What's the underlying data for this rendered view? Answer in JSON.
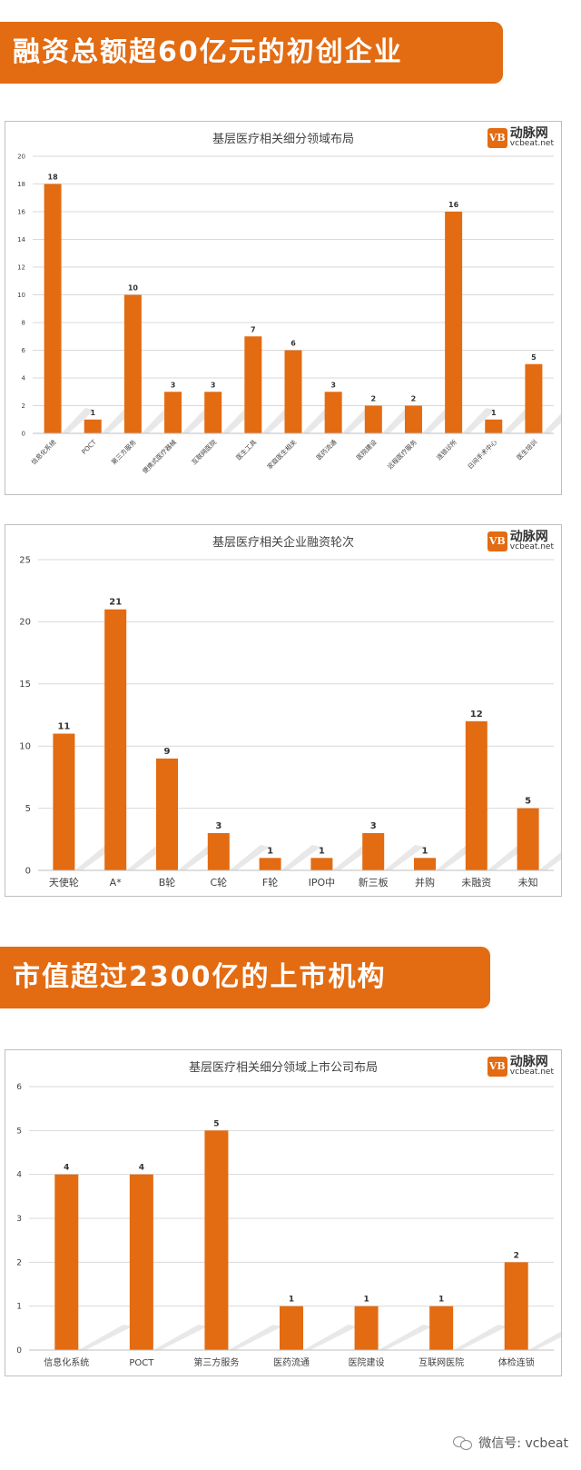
{
  "sections": [
    {
      "title": "融资总额超60亿元的初创企业"
    },
    {
      "title": "市值超过2300亿的上市机构"
    }
  ],
  "logo": {
    "mark": "VB",
    "cn": "动脉网",
    "en": "vcbeat.net"
  },
  "footer": {
    "text": "微信号: vcbeat",
    "icon": "wechat-icon"
  },
  "colors": {
    "accent": "#e36b12",
    "grid": "#d9d9d9",
    "text": "#404040"
  },
  "chart_data": [
    {
      "type": "bar",
      "title": "基层医疗相关细分领域布局",
      "categories": [
        "信息化系统",
        "POCT",
        "第三方服务",
        "便携式医疗器械",
        "互联网医院",
        "医生工具",
        "家庭医生相关",
        "医药流通",
        "医院建设",
        "远程医疗服务",
        "连锁诊所",
        "日间手术中心",
        "医生培训"
      ],
      "values": [
        18,
        1,
        10,
        3,
        3,
        7,
        6,
        3,
        2,
        2,
        16,
        1,
        5
      ],
      "yticks": [
        0,
        2,
        4,
        6,
        8,
        10,
        12,
        14,
        16,
        18,
        20
      ],
      "ylim": [
        0,
        20
      ],
      "xlabel_rotated": true,
      "grid": true
    },
    {
      "type": "bar",
      "title": "基层医疗相关企业融资轮次",
      "categories": [
        "天使轮",
        "A*",
        "B轮",
        "C轮",
        "F轮",
        "IPO中",
        "新三板",
        "并购",
        "未融资",
        "未知"
      ],
      "values": [
        11,
        21,
        9,
        3,
        1,
        1,
        3,
        1,
        12,
        5
      ],
      "yticks": [
        0,
        5,
        10,
        15,
        20,
        25
      ],
      "ylim": [
        0,
        25
      ],
      "xlabel_rotated": false,
      "grid": true
    },
    {
      "type": "bar",
      "title": "基层医疗相关细分领域上市公司布局",
      "categories": [
        "信息化系统",
        "POCT",
        "第三方服务",
        "医药流通",
        "医院建设",
        "互联网医院",
        "体检连锁"
      ],
      "values": [
        4,
        4,
        5,
        1,
        1,
        1,
        2
      ],
      "yticks": [
        0,
        1,
        2,
        3,
        4,
        5,
        6
      ],
      "ylim": [
        0,
        6
      ],
      "xlabel_rotated": false,
      "grid": true
    }
  ]
}
